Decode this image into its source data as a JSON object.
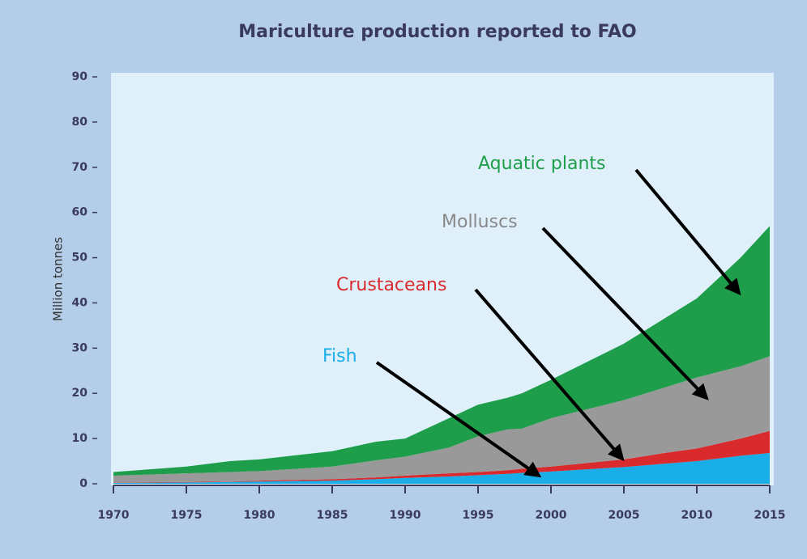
{
  "chart_data": {
    "type": "stacked_area",
    "title": "Mariculture production reported to FAO",
    "y_label": "Million tonnes",
    "x": [
      1970,
      1975,
      1978,
      1980,
      1985,
      1988,
      1990,
      1993,
      1995,
      1997,
      1998,
      2000,
      2005,
      2008,
      2010,
      2013,
      2015
    ],
    "series": [
      {
        "name": "Fish",
        "color": "#1aaee8",
        "values": [
          0.2,
          0.3,
          0.4,
          0.5,
          0.7,
          1.0,
          1.3,
          1.6,
          1.9,
          2.2,
          2.4,
          2.7,
          3.7,
          4.5,
          5.0,
          6.2,
          6.8
        ]
      },
      {
        "name": "Crustaceans",
        "color": "#d92b2e",
        "values": [
          0.1,
          0.1,
          0.1,
          0.2,
          0.3,
          0.4,
          0.5,
          0.7,
          0.7,
          0.8,
          0.9,
          1.1,
          1.7,
          2.4,
          2.8,
          3.8,
          4.9
        ]
      },
      {
        "name": "Molluscs",
        "color": "#999999",
        "values": [
          1.5,
          1.9,
          2.1,
          2.1,
          2.8,
          3.8,
          4.2,
          5.7,
          7.9,
          9.0,
          8.9,
          10.7,
          13.1,
          14.6,
          15.7,
          16.0,
          16.5
        ]
      },
      {
        "name": "Aquatic plants",
        "color": "#1e9e4a",
        "values": [
          0.8,
          1.5,
          2.4,
          2.6,
          3.4,
          4.1,
          4.0,
          6.5,
          7.0,
          7.0,
          7.8,
          8.5,
          12.5,
          15.5,
          17.5,
          24.0,
          28.8
        ]
      }
    ],
    "xlim": [
      1970,
      2015
    ],
    "xticks": [
      1970,
      1975,
      1980,
      1985,
      1990,
      1995,
      2000,
      2005,
      2010,
      2015
    ],
    "ylim": [
      0,
      90
    ],
    "yticks": [
      0,
      10,
      20,
      30,
      40,
      50,
      60,
      70,
      80,
      90
    ]
  }
}
